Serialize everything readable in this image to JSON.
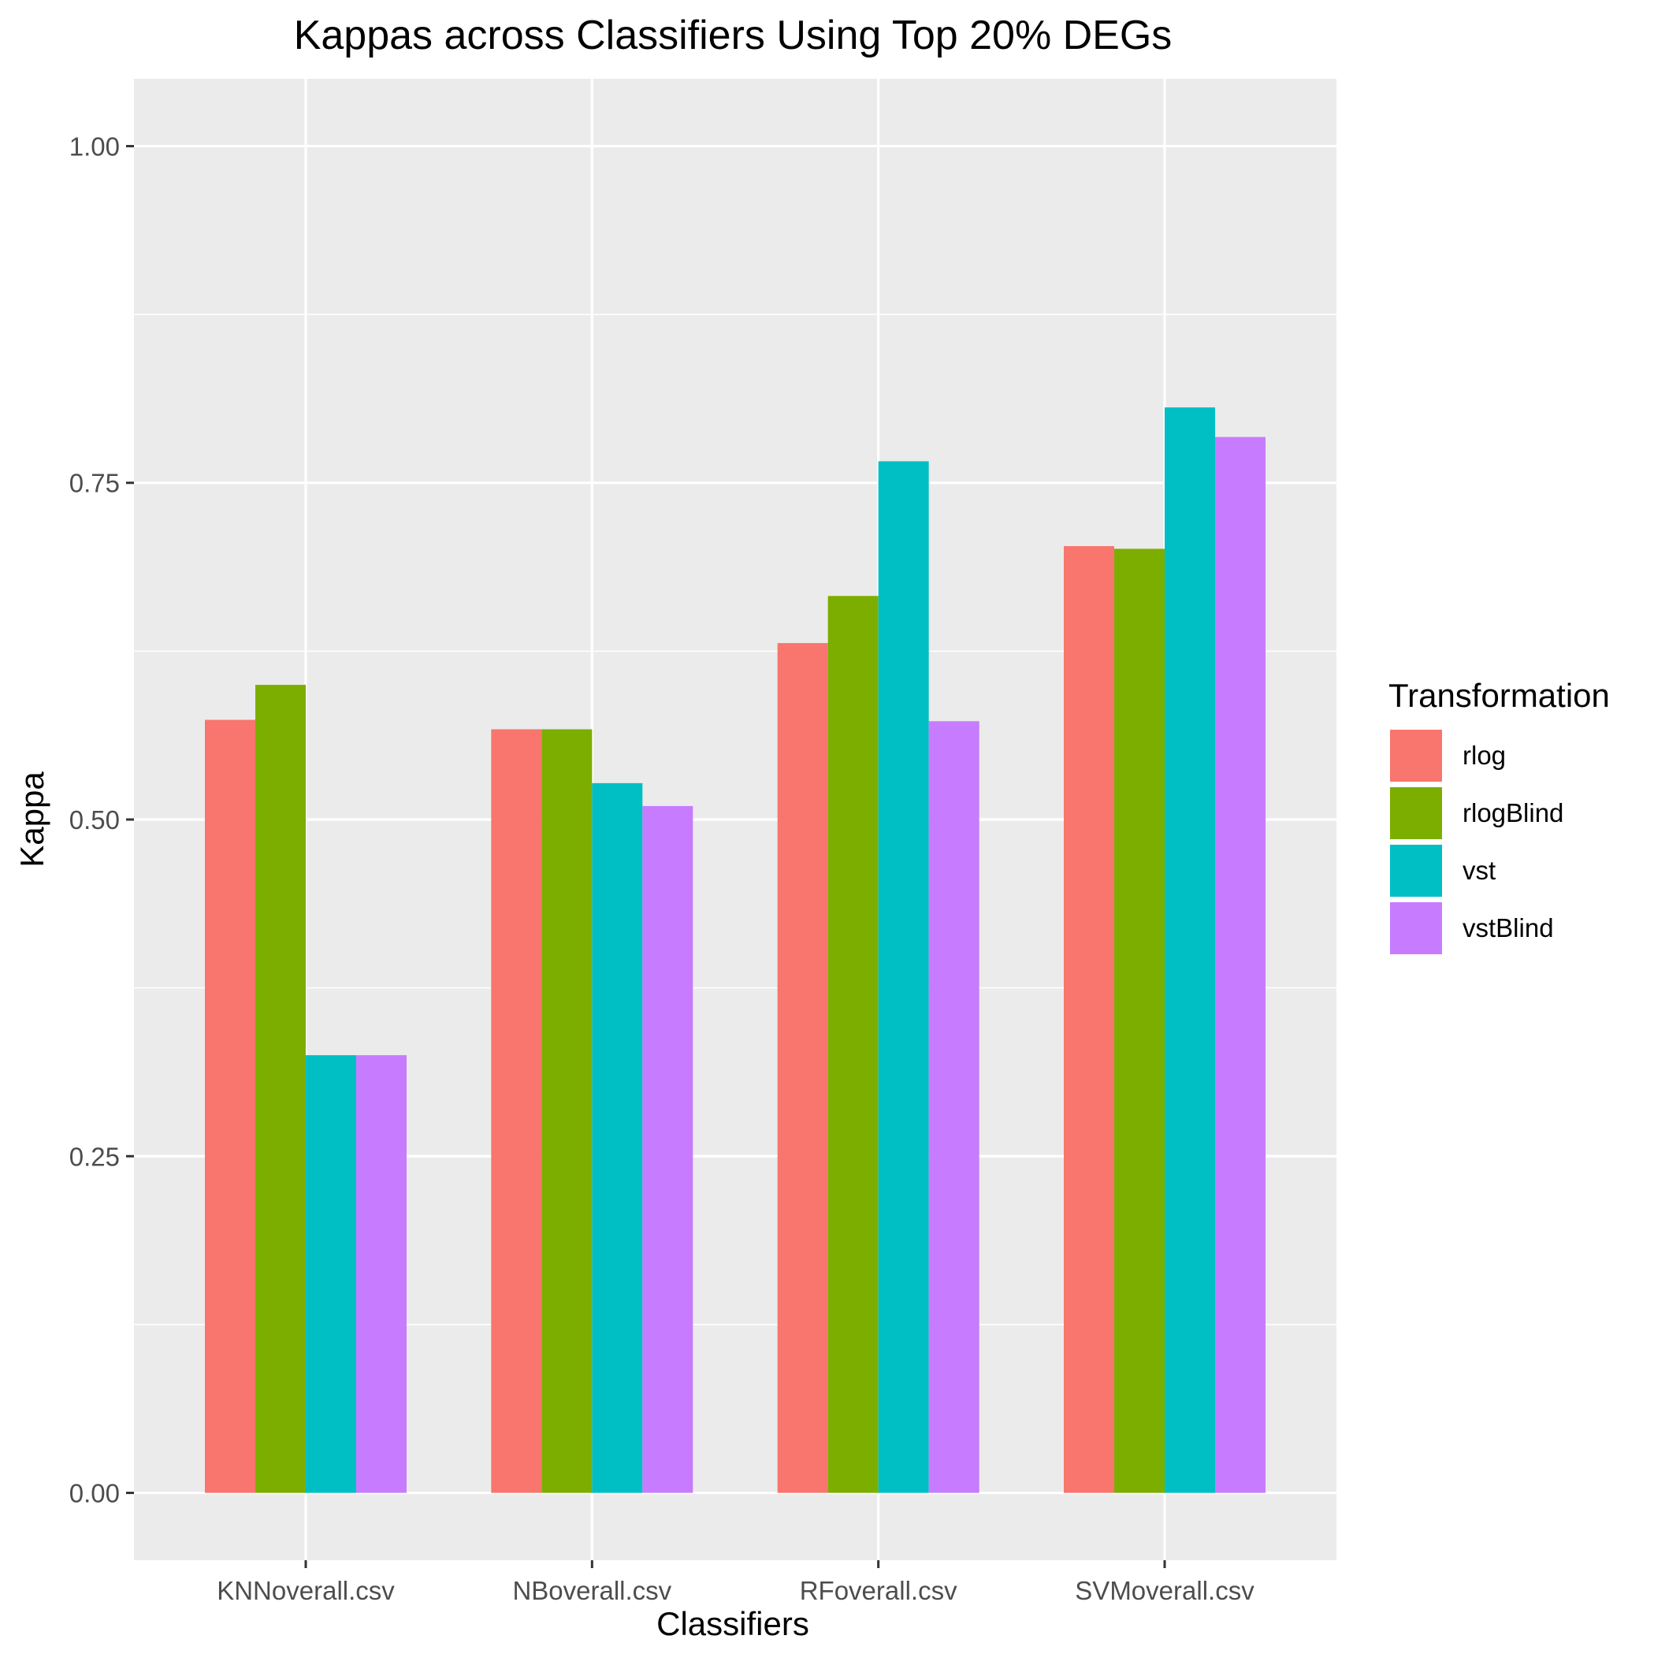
{
  "chart_data": {
    "type": "bar",
    "title": "Kappas across Classifiers Using Top 20% DEGs",
    "xlabel": "Classifiers",
    "ylabel": "Kappa",
    "categories": [
      "KNNoverall.csv",
      "NBoverall.csv",
      "RFoverall.csv",
      "SVMoverall.csv"
    ],
    "series": [
      {
        "name": "rlog",
        "color": "#F8766D",
        "values": [
          0.574,
          0.567,
          0.631,
          0.703
        ]
      },
      {
        "name": "rlogBlind",
        "color": "#7CAE00",
        "values": [
          0.6,
          0.567,
          0.666,
          0.701
        ]
      },
      {
        "name": "vst",
        "color": "#00BFC4",
        "values": [
          0.325,
          0.527,
          0.766,
          0.806
        ]
      },
      {
        "name": "vstBlind",
        "color": "#C77CFF",
        "values": [
          0.325,
          0.51,
          0.573,
          0.784
        ]
      }
    ],
    "ylim": [
      -0.05,
      1.05
    ],
    "yticks": [
      0.0,
      0.25,
      0.5,
      0.75,
      1.0
    ],
    "ytick_labels": [
      "0.00",
      "0.25",
      "0.50",
      "0.75",
      "1.00"
    ],
    "grid": true,
    "legend": {
      "title": "Transformation",
      "position": "right"
    },
    "panel_background": "#EBEBEB",
    "grid_color": "#FFFFFF"
  }
}
